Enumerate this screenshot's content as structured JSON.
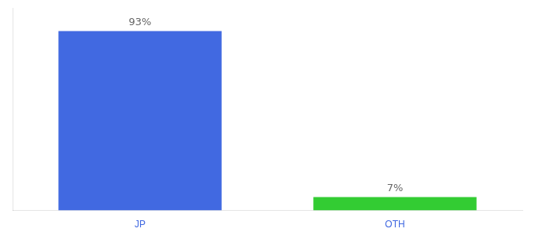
{
  "chart_data": {
    "type": "bar",
    "categories": [
      "JP",
      "OTH"
    ],
    "values": [
      93,
      7
    ],
    "value_labels": [
      "93%",
      "7%"
    ],
    "colors": [
      "#4169e1",
      "#33cc33"
    ],
    "ylim": [
      0,
      105
    ],
    "grid": false,
    "data_labels": true,
    "tick_labels": "x"
  }
}
